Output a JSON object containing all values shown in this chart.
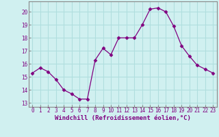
{
  "x": [
    0,
    1,
    2,
    3,
    4,
    5,
    6,
    7,
    8,
    9,
    10,
    11,
    12,
    13,
    14,
    15,
    16,
    17,
    18,
    19,
    20,
    21,
    22,
    23
  ],
  "y": [
    15.3,
    15.7,
    15.4,
    14.8,
    14.0,
    13.7,
    13.3,
    13.3,
    16.3,
    17.2,
    16.7,
    18.0,
    18.0,
    18.0,
    19.0,
    20.2,
    20.3,
    20.0,
    18.9,
    17.4,
    16.6,
    15.9,
    15.6,
    15.3
  ],
  "line_color": "#800080",
  "marker": "D",
  "marker_size": 2.5,
  "bg_color": "#d0f0f0",
  "grid_color": "#b0dede",
  "xlabel": "Windchill (Refroidissement éolien,°C)",
  "xlim": [
    -0.5,
    23.5
  ],
  "ylim": [
    12.7,
    20.8
  ],
  "yticks": [
    13,
    14,
    15,
    16,
    17,
    18,
    19,
    20
  ],
  "xticks": [
    0,
    1,
    2,
    3,
    4,
    5,
    6,
    7,
    8,
    9,
    10,
    11,
    12,
    13,
    14,
    15,
    16,
    17,
    18,
    19,
    20,
    21,
    22,
    23
  ],
  "tick_label_size": 5.5,
  "xlabel_size": 6.5,
  "spine_color": "#888888"
}
